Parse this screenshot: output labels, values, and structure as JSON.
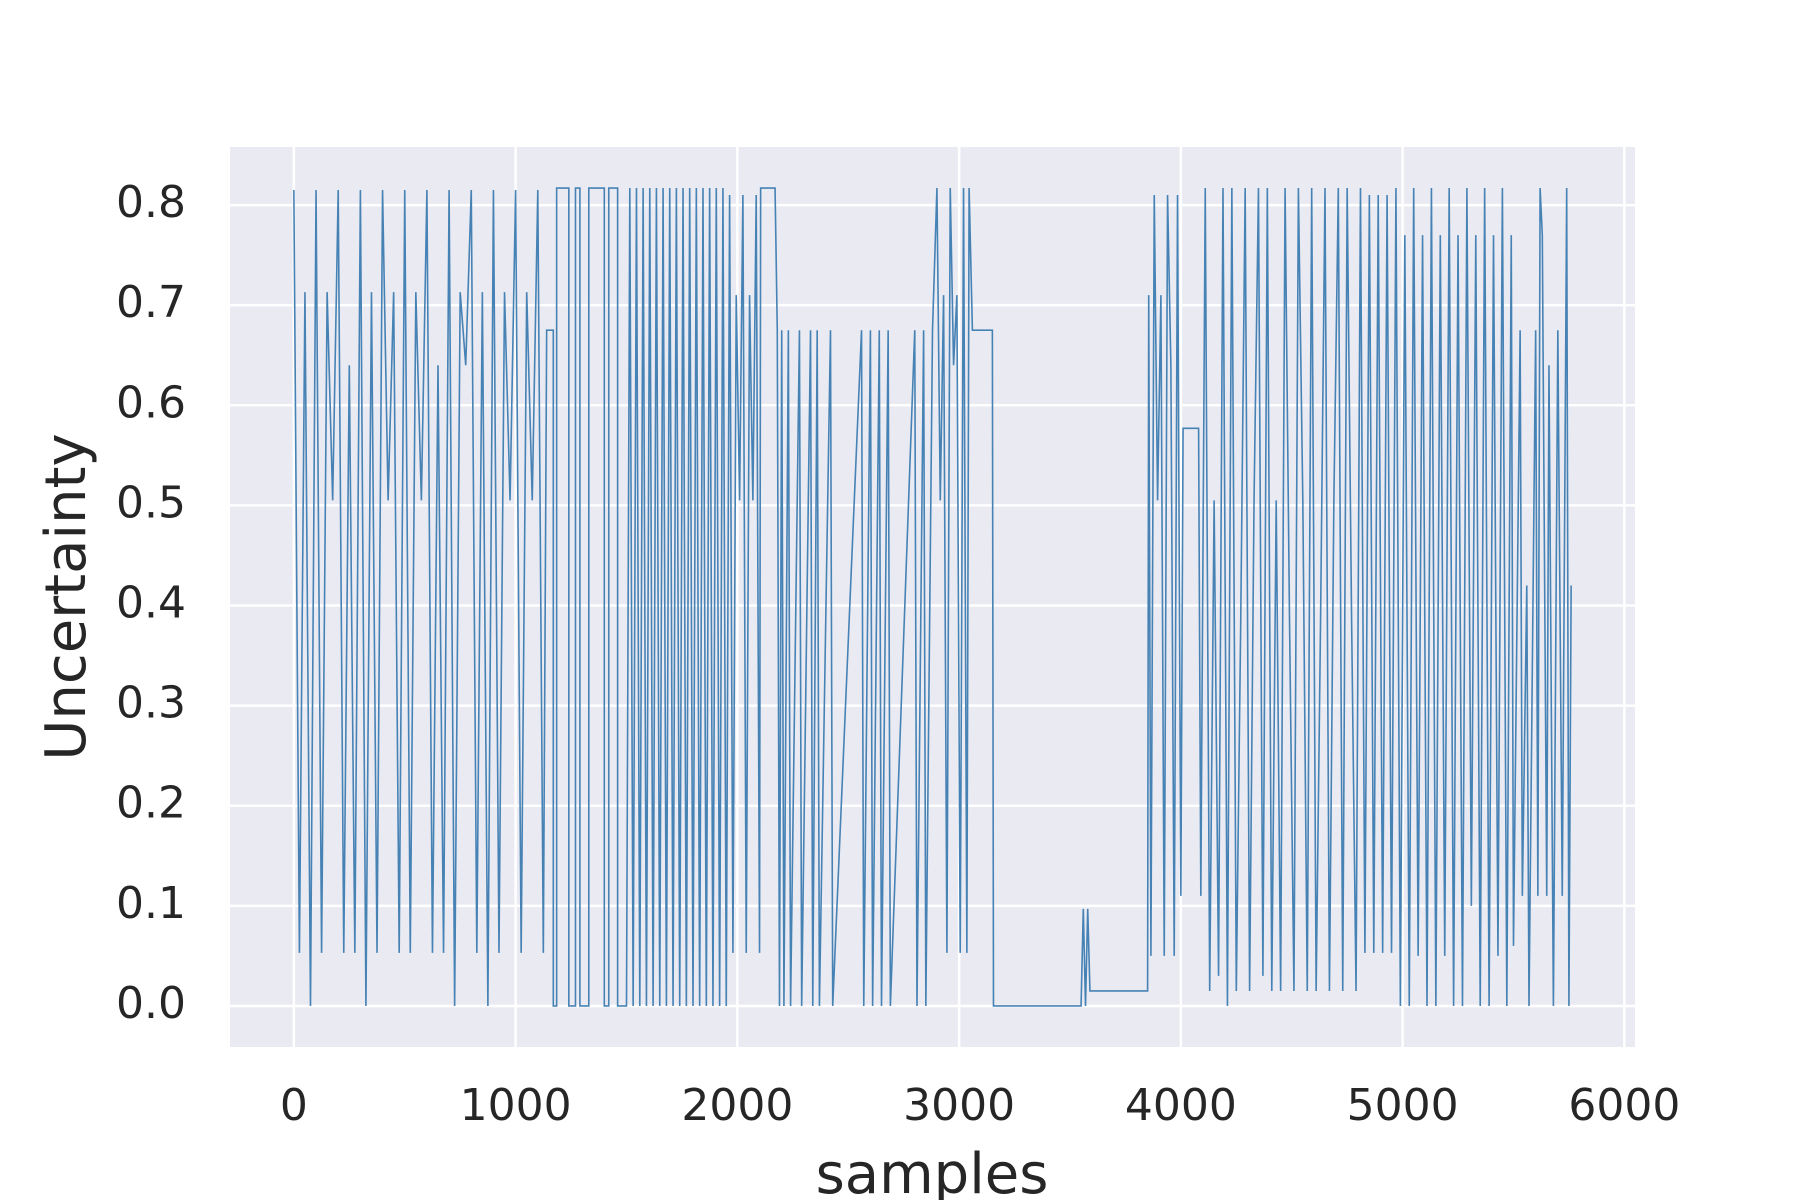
{
  "chart_data": {
    "type": "line",
    "xlabel": "samples",
    "ylabel": "Uncertainty",
    "color": "#4682b4",
    "background": "#eaeaf2",
    "grid": true,
    "xlim": [
      -288,
      6048
    ],
    "ylim": [
      -0.041,
      0.858
    ],
    "xticks": [
      0,
      1000,
      2000,
      3000,
      4000,
      5000,
      6000
    ],
    "yticks": [
      {
        "value": 0,
        "label": "0.0"
      },
      0.1,
      0.2,
      0.3,
      0.4,
      0.5,
      0.6,
      0.7,
      0.8
    ],
    "x": [
      0,
      25,
      50,
      75,
      100,
      125,
      150,
      175,
      200,
      225,
      250,
      275,
      300,
      325,
      350,
      375,
      400,
      425,
      450,
      475,
      500,
      525,
      550,
      575,
      600,
      625,
      650,
      675,
      700,
      725,
      750,
      775,
      800,
      825,
      850,
      875,
      900,
      925,
      950,
      975,
      1000,
      1025,
      1050,
      1075,
      1100,
      1125,
      1140,
      1170,
      1170,
      1185,
      1185,
      1240,
      1240,
      1270,
      1270,
      1290,
      1290,
      1330,
      1330,
      1400,
      1400,
      1420,
      1420,
      1460,
      1460,
      1500,
      1515,
      1530,
      1545,
      1560,
      1575,
      1590,
      1605,
      1620,
      1635,
      1650,
      1665,
      1680,
      1695,
      1710,
      1725,
      1740,
      1755,
      1770,
      1785,
      1800,
      1815,
      1830,
      1845,
      1860,
      1875,
      1890,
      1905,
      1920,
      1935,
      1950,
      1965,
      1980,
      1995,
      2010,
      2025,
      2040,
      2055,
      2070,
      2085,
      2100,
      2105,
      2170,
      2180,
      2190,
      2200,
      2210,
      2230,
      2240,
      2280,
      2290,
      2330,
      2340,
      2360,
      2370,
      2420,
      2430,
      2560,
      2570,
      2600,
      2610,
      2640,
      2650,
      2680,
      2690,
      2800,
      2810,
      2840,
      2850,
      2880,
      2900,
      2915,
      2930,
      2945,
      2960,
      2975,
      2990,
      3005,
      3020,
      3035,
      3045,
      3060,
      3150,
      3155,
      3550,
      3560,
      3570,
      3580,
      3590,
      3600,
      3850,
      3855,
      3865,
      3880,
      3895,
      3910,
      3925,
      3940,
      3955,
      3970,
      3985,
      4000,
      4010,
      4080,
      4090,
      4110,
      4130,
      4150,
      4170,
      4190,
      4210,
      4230,
      4250,
      4270,
      4290,
      4310,
      4330,
      4350,
      4370,
      4390,
      4410,
      4430,
      4450,
      4470,
      4490,
      4510,
      4530,
      4550,
      4570,
      4590,
      4610,
      4630,
      4650,
      4670,
      4690,
      4710,
      4730,
      4750,
      4770,
      4790,
      4810,
      4830,
      4850,
      4870,
      4890,
      4910,
      4930,
      4950,
      4970,
      4990,
      5010,
      5030,
      5050,
      5070,
      5090,
      5110,
      5130,
      5150,
      5170,
      5190,
      5210,
      5230,
      5250,
      5270,
      5290,
      5310,
      5330,
      5350,
      5370,
      5390,
      5410,
      5430,
      5450,
      5470,
      5490,
      5500,
      5530,
      5540,
      5560,
      5570,
      5600,
      5610,
      5620,
      5630,
      5650,
      5660,
      5680,
      5700,
      5720,
      5740,
      5750,
      5760
    ],
    "values": [
      0.815,
      0.053,
      0.713,
      0,
      0.815,
      0.053,
      0.713,
      0.505,
      0.815,
      0.053,
      0.64,
      0.053,
      0.815,
      0,
      0.713,
      0.053,
      0.815,
      0.505,
      0.713,
      0.053,
      0.815,
      0.053,
      0.713,
      0.505,
      0.815,
      0.053,
      0.64,
      0.053,
      0.815,
      0,
      0.713,
      0.64,
      0.815,
      0.053,
      0.713,
      0,
      0.815,
      0.053,
      0.713,
      0.505,
      0.815,
      0.053,
      0.713,
      0.505,
      0.815,
      0.053,
      0.675,
      0.675,
      0,
      0,
      0.817,
      0.817,
      0,
      0,
      0.817,
      0.817,
      0,
      0,
      0.817,
      0.817,
      0,
      0,
      0.817,
      0.817,
      0,
      0,
      0.817,
      0,
      0.817,
      0,
      0.817,
      0,
      0.817,
      0,
      0.817,
      0,
      0.817,
      0,
      0.817,
      0,
      0.817,
      0,
      0.817,
      0,
      0.817,
      0,
      0.817,
      0,
      0.817,
      0,
      0.817,
      0,
      0.817,
      0,
      0.817,
      0,
      0.81,
      0.053,
      0.71,
      0.505,
      0.81,
      0.053,
      0.71,
      0.505,
      0.81,
      0.053,
      0.817,
      0.817,
      0.675,
      0,
      0.675,
      0,
      0.675,
      0,
      0.675,
      0,
      0.675,
      0,
      0.675,
      0,
      0.675,
      0,
      0.675,
      0,
      0.675,
      0,
      0.675,
      0,
      0.675,
      0,
      0.675,
      0,
      0.675,
      0,
      0.675,
      0.817,
      0.505,
      0.71,
      0.053,
      0.817,
      0.64,
      0.71,
      0.053,
      0.817,
      0.053,
      0.817,
      0.675,
      0.675,
      0,
      0,
      0.097,
      0,
      0.097,
      0.015,
      0.015,
      0.015,
      0.71,
      0.05,
      0.81,
      0.505,
      0.71,
      0.05,
      0.81,
      0.64,
      0.05,
      0.81,
      0.11,
      0.577,
      0.577,
      0.11,
      0.817,
      0.015,
      0.505,
      0.03,
      0.817,
      0,
      0.817,
      0.015,
      0.385,
      0.817,
      0.015,
      0.505,
      0.817,
      0.03,
      0.817,
      0.015,
      0.505,
      0.015,
      0.817,
      0.385,
      0.015,
      0.817,
      0.505,
      0.015,
      0.817,
      0.015,
      0.385,
      0.817,
      0.015,
      0.505,
      0.817,
      0.015,
      0.817,
      0.385,
      0.015,
      0.817,
      0.053,
      0.81,
      0.053,
      0.81,
      0.053,
      0.81,
      0.053,
      0.817,
      0,
      0.77,
      0,
      0.817,
      0.05,
      0.77,
      0,
      0.817,
      0,
      0.77,
      0.05,
      0.817,
      0,
      0.77,
      0,
      0.817,
      0.1,
      0.77,
      0,
      0.817,
      0,
      0.77,
      0.05,
      0.817,
      0,
      0.77,
      0.06,
      0.675,
      0.11,
      0.42,
      0,
      0.675,
      0.11,
      0.817,
      0.77,
      0.11,
      0.64,
      0,
      0.675,
      0.11,
      0.817,
      0,
      0.42
    ]
  }
}
